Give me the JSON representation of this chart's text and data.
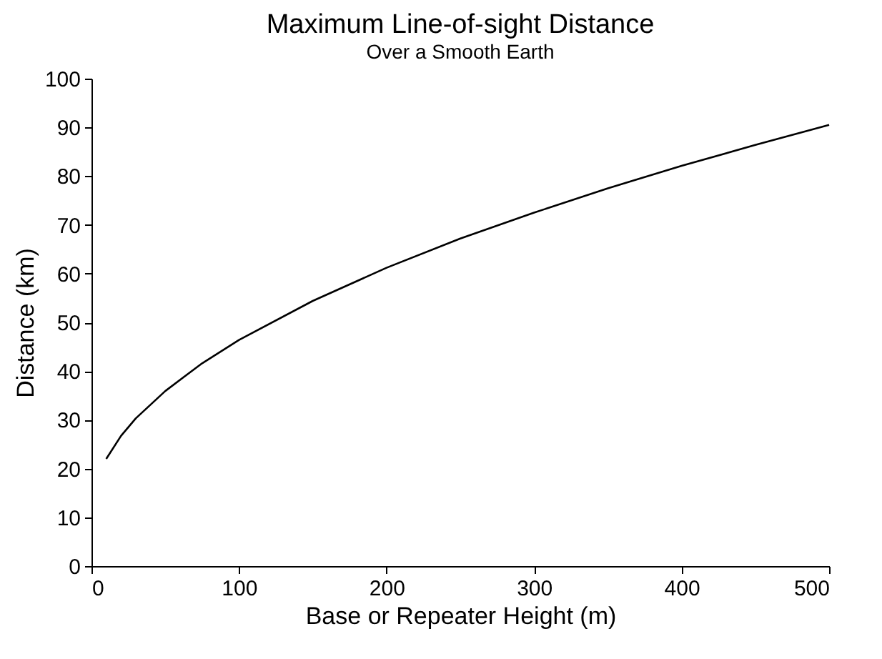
{
  "chart_data": {
    "type": "line",
    "title": "Maximum Line-of-sight Distance",
    "subtitle": "Over a Smooth Earth",
    "xlabel": "Base or Repeater Height (m)",
    "ylabel": "Distance (km)",
    "x": [
      10,
      20,
      30,
      50,
      75,
      100,
      150,
      200,
      250,
      300,
      350,
      400,
      450,
      500
    ],
    "series": [
      {
        "color": "#000000",
        "values": [
          22,
          26.7,
          30.3,
          35.9,
          41.6,
          46.4,
          54.4,
          61.2,
          67.2,
          72.5,
          77.5,
          82.1,
          86.4,
          90.5
        ]
      }
    ],
    "xlim": [
      0,
      500
    ],
    "xticks": [
      0,
      100,
      200,
      300,
      400,
      500
    ],
    "ylim": [
      0,
      100
    ],
    "yticks": [
      0,
      10,
      20,
      30,
      40,
      50,
      60,
      70,
      80,
      90,
      100
    ],
    "grid": false,
    "marker": "none",
    "line_style": "solid"
  }
}
